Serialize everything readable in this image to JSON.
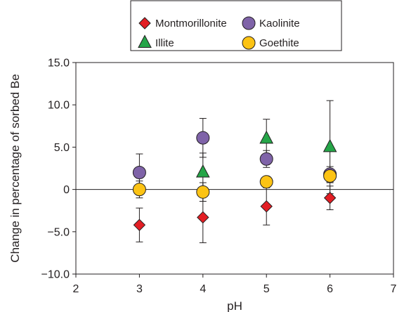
{
  "chart_data": {
    "type": "scatter",
    "title": "",
    "xlabel": "pH",
    "ylabel": "Change in percentage of sorbed Be",
    "xlim": [
      2,
      7
    ],
    "ylim": [
      -10,
      15
    ],
    "x_ticks": [
      2,
      3,
      4,
      5,
      6,
      7
    ],
    "x_tick_labels": [
      "2",
      "3",
      "4",
      "5",
      "6",
      "7"
    ],
    "y_ticks": [
      -10,
      -5,
      0,
      5,
      10,
      15
    ],
    "y_tick_labels": [
      "−10.0",
      "−5.0",
      "0",
      "5.0",
      "10.0",
      "15.0"
    ],
    "grid": false,
    "zero_line": true,
    "legend_position": "top-center",
    "series": [
      {
        "name": "Montmorillonite",
        "marker": "diamond",
        "color": "#e31e24",
        "points": [
          {
            "x": 3,
            "y": -4.2,
            "err": 2.0
          },
          {
            "x": 4,
            "y": -3.3,
            "err": 3.0
          },
          {
            "x": 5,
            "y": -2.0,
            "err": 2.2
          },
          {
            "x": 6,
            "y": -1.0,
            "err": 1.4
          }
        ]
      },
      {
        "name": "Kaolinite",
        "marker": "circle",
        "color": "#7f63a8",
        "points": [
          {
            "x": 3,
            "y": 2.0,
            "err": 2.2
          },
          {
            "x": 4,
            "y": 6.1,
            "err": 2.3
          },
          {
            "x": 5,
            "y": 3.6,
            "err": 1.0
          },
          {
            "x": 6,
            "y": 1.8,
            "err": 0.9
          }
        ]
      },
      {
        "name": "Illite",
        "marker": "triangle",
        "color": "#25a548",
        "points": [
          {
            "x": 4,
            "y": 2.0,
            "err": 2.3
          },
          {
            "x": 5,
            "y": 6.0,
            "err": 2.3
          },
          {
            "x": 6,
            "y": 5.0,
            "err": 5.5
          }
        ]
      },
      {
        "name": "Goethite",
        "marker": "circle",
        "color": "#fcc314",
        "points": [
          {
            "x": 3,
            "y": 0.0,
            "err": 1.0
          },
          {
            "x": 4,
            "y": -0.3,
            "err": 1.1
          },
          {
            "x": 5,
            "y": 0.9,
            "err": 0.5
          },
          {
            "x": 6,
            "y": 1.6,
            "err": 0.8
          }
        ]
      }
    ]
  }
}
